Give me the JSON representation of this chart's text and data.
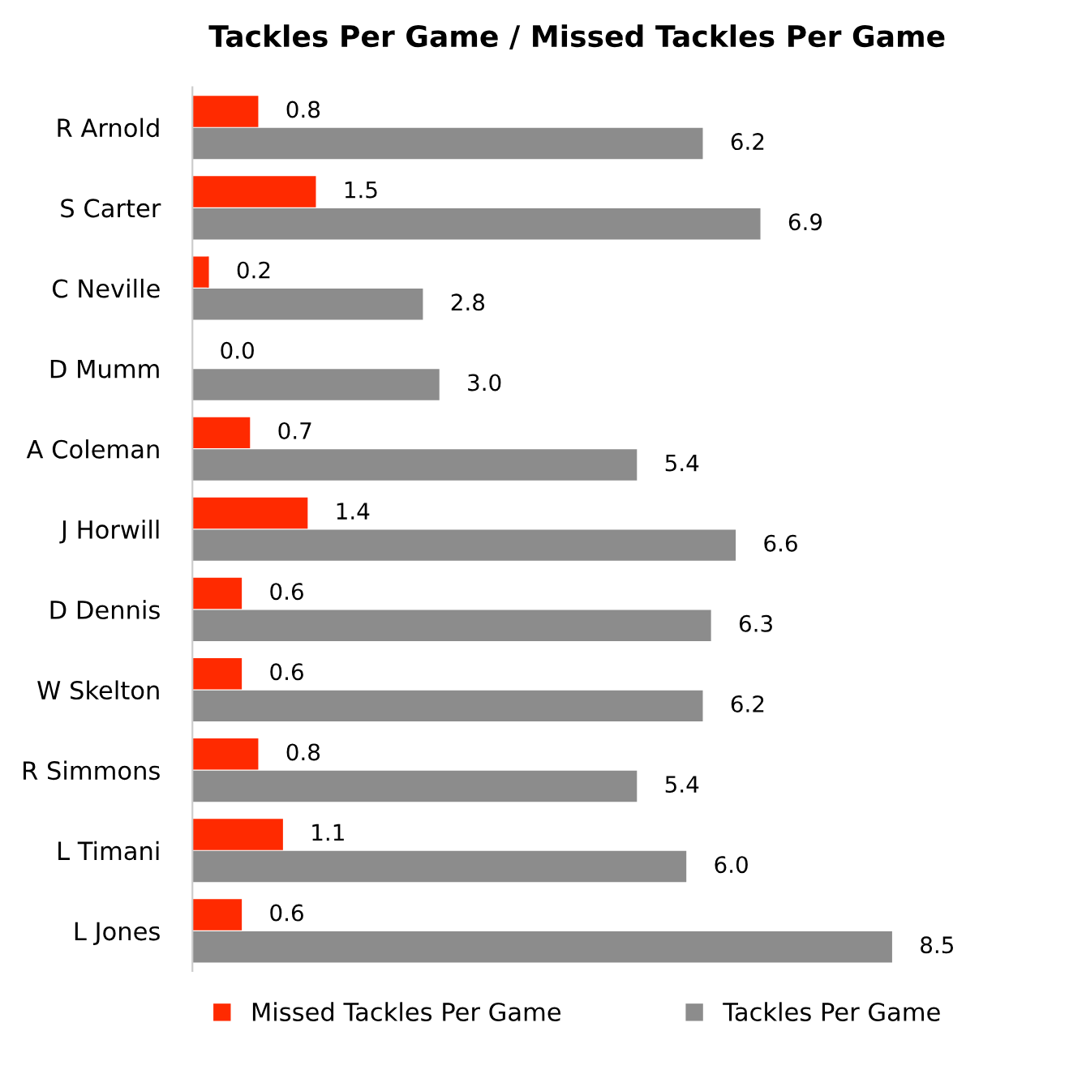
{
  "chart_data": {
    "type": "bar",
    "orientation": "horizontal",
    "title": "Tackles Per Game / Missed Tackles Per Game",
    "categories": [
      "R Arnold",
      "S Carter",
      "C Neville",
      "D Mumm",
      "A Coleman",
      "J Horwill",
      "D Dennis",
      "W Skelton",
      "R Simmons",
      "L Timani",
      "L Jones"
    ],
    "series": [
      {
        "name": "Missed Tackles Per Game",
        "color": "#ff2a00",
        "values": [
          0.8,
          1.5,
          0.2,
          0,
          0.7,
          1.4,
          0.6,
          0.6,
          0.8,
          1.1,
          0.6
        ],
        "value_labels": [
          "0.8",
          "1.5",
          "0.2",
          "0.0",
          "0.7",
          "1.4",
          "0.6",
          "0.6",
          "0.8",
          "1.1",
          "0.6"
        ]
      },
      {
        "name": "Tackles Per Game",
        "color": "#8c8c8c",
        "values": [
          6.2,
          6.9,
          2.8,
          3,
          5.4,
          6.6,
          6.3,
          6.2,
          5.4,
          6,
          8.5
        ],
        "value_labels": [
          "6.2",
          "6.9",
          "2.8",
          "3.0",
          "5.4",
          "6.6",
          "6.3",
          "6.2",
          "5.4",
          "6.0",
          "8.5"
        ]
      }
    ],
    "legend": "bottom",
    "grid": false
  }
}
